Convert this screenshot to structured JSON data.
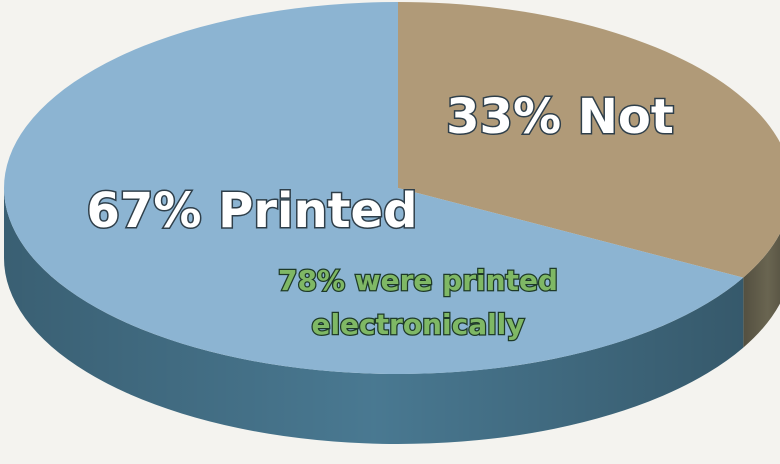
{
  "chart_data": {
    "type": "pie",
    "style": "3d",
    "categories": [
      "Printed",
      "Not"
    ],
    "values": [
      67,
      33
    ],
    "labels": [
      "67% Printed",
      "33% Not"
    ],
    "annotation": "78% were printed electronically",
    "annotation_lines": [
      "78% were printed",
      "electronically"
    ],
    "colors": {
      "Printed": "#8cb4d2",
      "Not": "#b09a78",
      "Printed_side": "#4d7f99",
      "Not_side": "#6f6a55",
      "label_text": "#ffffff",
      "label_outline": "#2f3f4a",
      "annotation_text": "#7fb865",
      "annotation_outline": "#1e3a28"
    }
  }
}
